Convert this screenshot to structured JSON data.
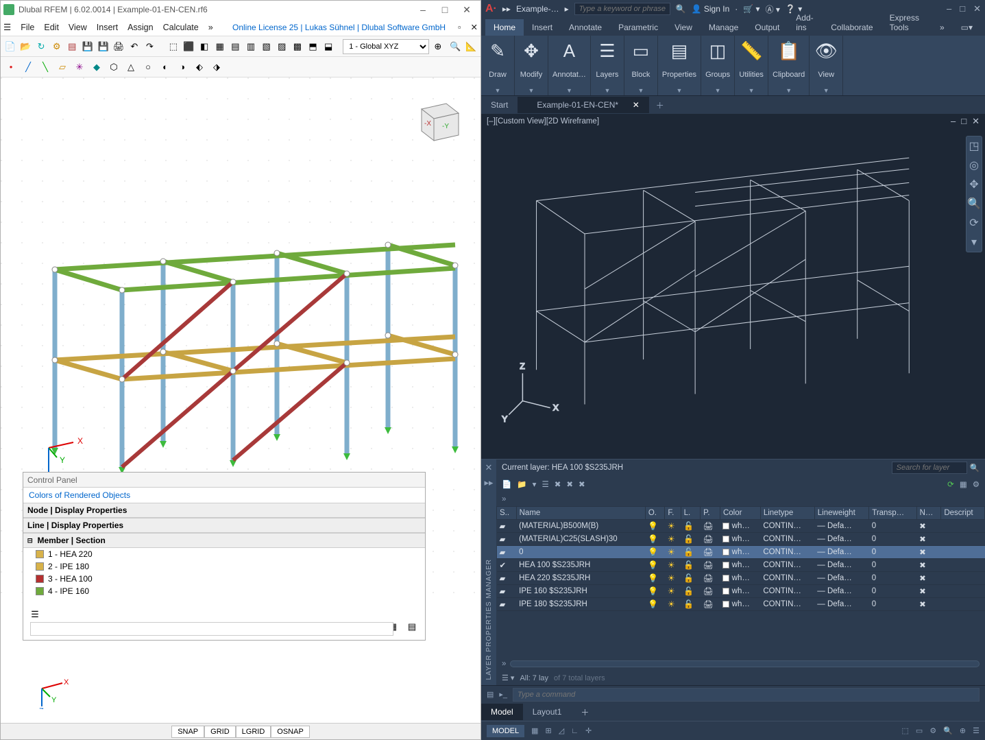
{
  "rfem": {
    "title": "Dlubal RFEM | 6.02.0014 | Example-01-EN-CEN.rf6",
    "menu": [
      "File",
      "Edit",
      "View",
      "Insert",
      "Assign",
      "Calculate"
    ],
    "menu_ellipsis": "»",
    "brand": "Online License 25 | Lukas Sühnel | Dlubal Software GmbH",
    "coord_sel": "1 - Global XYZ",
    "status": [
      "SNAP",
      "GRID",
      "LGRID",
      "OSNAP"
    ],
    "control_panel": {
      "title": "Control Panel",
      "header": "Colors of Rendered Objects",
      "sec1": "Node | Display Properties",
      "sec2": "Line | Display Properties",
      "sec3": "Member | Section",
      "items": [
        {
          "label": "1 - HEA 220",
          "color": "#d8b24a"
        },
        {
          "label": "2 - IPE 180",
          "color": "#d8b24a"
        },
        {
          "label": "3 - HEA 100",
          "color": "#b53030"
        },
        {
          "label": "4 - IPE 160",
          "color": "#6faa3c"
        }
      ]
    },
    "axis": {
      "x": "X",
      "y": "Y",
      "z": "Z"
    },
    "model_colors": {
      "top_beam": "#6faa3c",
      "mid_beam": "#c7a443",
      "column": "#7faecc",
      "brace": "#a83939",
      "support": "#3dbb3d"
    }
  },
  "acad": {
    "doc_short": "Example-…",
    "search_ph": "Type a keyword or phrase",
    "signin": "Sign In",
    "ribtabs": [
      "Home",
      "Insert",
      "Annotate",
      "Parametric",
      "View",
      "Manage",
      "Output",
      "Add-ins",
      "Collaborate",
      "Express Tools"
    ],
    "ribtabs_more": "»",
    "ribgroups": [
      "Draw",
      "Modify",
      "Annotat…",
      "Layers",
      "Block",
      "Properties",
      "Groups",
      "Utilities",
      "Clipboard",
      "View"
    ],
    "doctabs_start": "Start",
    "doctabs_active": "Example-01-EN-CEN*",
    "viewhdr": "[–][Custom View][2D Wireframe]",
    "axis": {
      "x": "X",
      "y": "Y",
      "z": "Z"
    },
    "layers": {
      "current": "Current layer: HEA 100 $S235JRH",
      "search_ph": "Search for layer",
      "side_label": "LAYER PROPERTIES MANAGER",
      "cols": [
        "S..",
        "Name",
        "O.",
        "F.",
        "L.",
        "P.",
        "Color",
        "Linetype",
        "Lineweight",
        "Transp…",
        "N…",
        "Descript"
      ],
      "rows": [
        {
          "name": "(MATERIAL)B500M(B)",
          "color": "#ffffff",
          "colortxt": "wh…",
          "lt": "CONTIN…",
          "lw": "— Defa…",
          "tr": "0"
        },
        {
          "name": "(MATERIAL)C25(SLASH)30",
          "color": "#ffffff",
          "colortxt": "wh…",
          "lt": "CONTIN…",
          "lw": "— Defa…",
          "tr": "0"
        },
        {
          "name": "0",
          "color": "#ffffff",
          "colortxt": "wh…",
          "lt": "CONTIN…",
          "lw": "— Defa…",
          "tr": "0",
          "sel": true
        },
        {
          "name": "HEA 100 $S235JRH",
          "color": "#ffffff",
          "colortxt": "wh…",
          "lt": "CONTIN…",
          "lw": "— Defa…",
          "tr": "0",
          "check": true
        },
        {
          "name": "HEA 220 $S235JRH",
          "color": "#ffffff",
          "colortxt": "wh…",
          "lt": "CONTIN…",
          "lw": "— Defa…",
          "tr": "0"
        },
        {
          "name": "IPE 160 $S235JRH",
          "color": "#ffffff",
          "colortxt": "wh…",
          "lt": "CONTIN…",
          "lw": "— Defa…",
          "tr": "0"
        },
        {
          "name": "IPE 180 $S235JRH",
          "color": "#ffffff",
          "colortxt": "wh…",
          "lt": "CONTIN…",
          "lw": "— Defa…",
          "tr": "0"
        }
      ],
      "footer": "All: 7 lay",
      "footer2": "of 7 total layers"
    },
    "cmd_ph": "Type a command",
    "bottabs": [
      "Model",
      "Layout1"
    ],
    "status_left": "MODEL",
    "wire_color": "#c8d0db",
    "canvas_bg": "#1d2735"
  }
}
